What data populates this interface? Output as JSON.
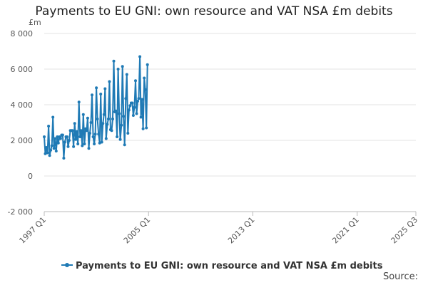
{
  "chart_data": {
    "type": "line",
    "title": "Payments to EU GNI: own resource and VAT NSA £m debits",
    "unit_label": "£m",
    "ylim": [
      -2000,
      8000
    ],
    "y_ticks": [
      -2000,
      0,
      2000,
      4000,
      6000,
      8000
    ],
    "y_tick_labels": [
      "-2 000",
      "0",
      "2 000",
      "4 000",
      "6 000",
      "8 000"
    ],
    "x_range": [
      1997,
      2025.5
    ],
    "x_ticks": [
      1997,
      2005,
      2013,
      2021,
      2025.5
    ],
    "x_tick_labels": [
      "1997 Q1",
      "2005 Q1",
      "2013 Q1",
      "2021 Q1",
      "2025 Q3"
    ],
    "grid": "horizontal",
    "legend_position": "bottom",
    "series": [
      {
        "name": "Payments to EU GNI: own resource and VAT NSA £m debits",
        "color": "#1f7ab5",
        "start": "1997-01",
        "frequency": "monthly",
        "values": [
          2200,
          1250,
          1600,
          1300,
          2800,
          1150,
          1450,
          1700,
          3300,
          1550,
          2100,
          1400,
          2200,
          1850,
          2200,
          2100,
          2300,
          2300,
          1000,
          1900,
          2200,
          2200,
          1650,
          2000,
          2550,
          2550,
          2550,
          1650,
          2950,
          2050,
          2500,
          1800,
          4150,
          2200,
          2550,
          1700,
          3450,
          1800,
          2650,
          2550,
          3250,
          1550,
          2400,
          3000,
          4550,
          2200,
          1800,
          2350,
          4950,
          3200,
          2350,
          1850,
          4600,
          1900,
          2950,
          3450,
          4900,
          2100,
          2900,
          3200,
          5300,
          2600,
          2550,
          3200,
          6450,
          3600,
          3650,
          2200,
          6000,
          3500,
          2050,
          2850,
          6150,
          3350,
          1750,
          4350,
          5700,
          2400,
          3700,
          3950,
          4100,
          4100,
          3400,
          3850,
          5350,
          3500,
          4200,
          4350,
          6700,
          3300,
          4300,
          2650,
          5500,
          4850,
          2700,
          6250
        ]
      }
    ],
    "legend": [
      "Payments to EU GNI: own resource and VAT NSA £m debits"
    ],
    "source_label": "Source:"
  }
}
